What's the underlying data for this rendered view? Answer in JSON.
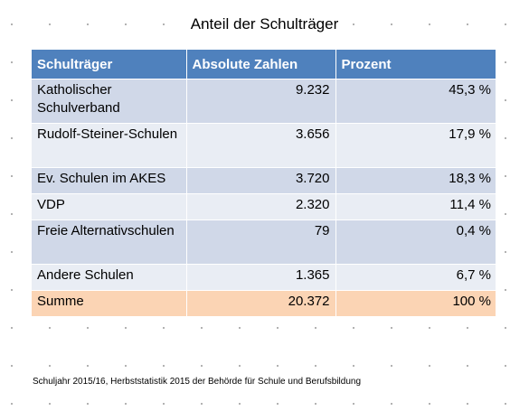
{
  "title": "Anteil der Schulträger",
  "table": {
    "headers": [
      "Schulträger",
      "Absolute Zahlen",
      "Prozent"
    ],
    "rows": [
      {
        "name": "Katholischer Schulverband",
        "absolute": "9.232",
        "percent": "45,3 %"
      },
      {
        "name": "Rudolf-Steiner-Schulen",
        "absolute": "3.656",
        "percent": "17,9 %"
      },
      {
        "name": "Ev. Schulen im AKES",
        "absolute": "3.720",
        "percent": "18,3 %"
      },
      {
        "name": "VDP",
        "absolute": "2.320",
        "percent": "11,4 %"
      },
      {
        "name": "Freie Alternativschulen",
        "absolute": "79",
        "percent": "0,4 %"
      },
      {
        "name": "Andere Schulen",
        "absolute": "1.365",
        "percent": "6,7 %"
      }
    ],
    "total": {
      "name": "Summe",
      "absolute": "20.372",
      "percent": "100 %"
    }
  },
  "source": "Schuljahr 2015/16, Herbststatistik 2015 der Behörde für Schule und Berufsbildung",
  "colors": {
    "header": "#4f81bd",
    "row_dark": "#d0d8e8",
    "row_light": "#e9edf4",
    "total_row": "#fbd4b4"
  }
}
